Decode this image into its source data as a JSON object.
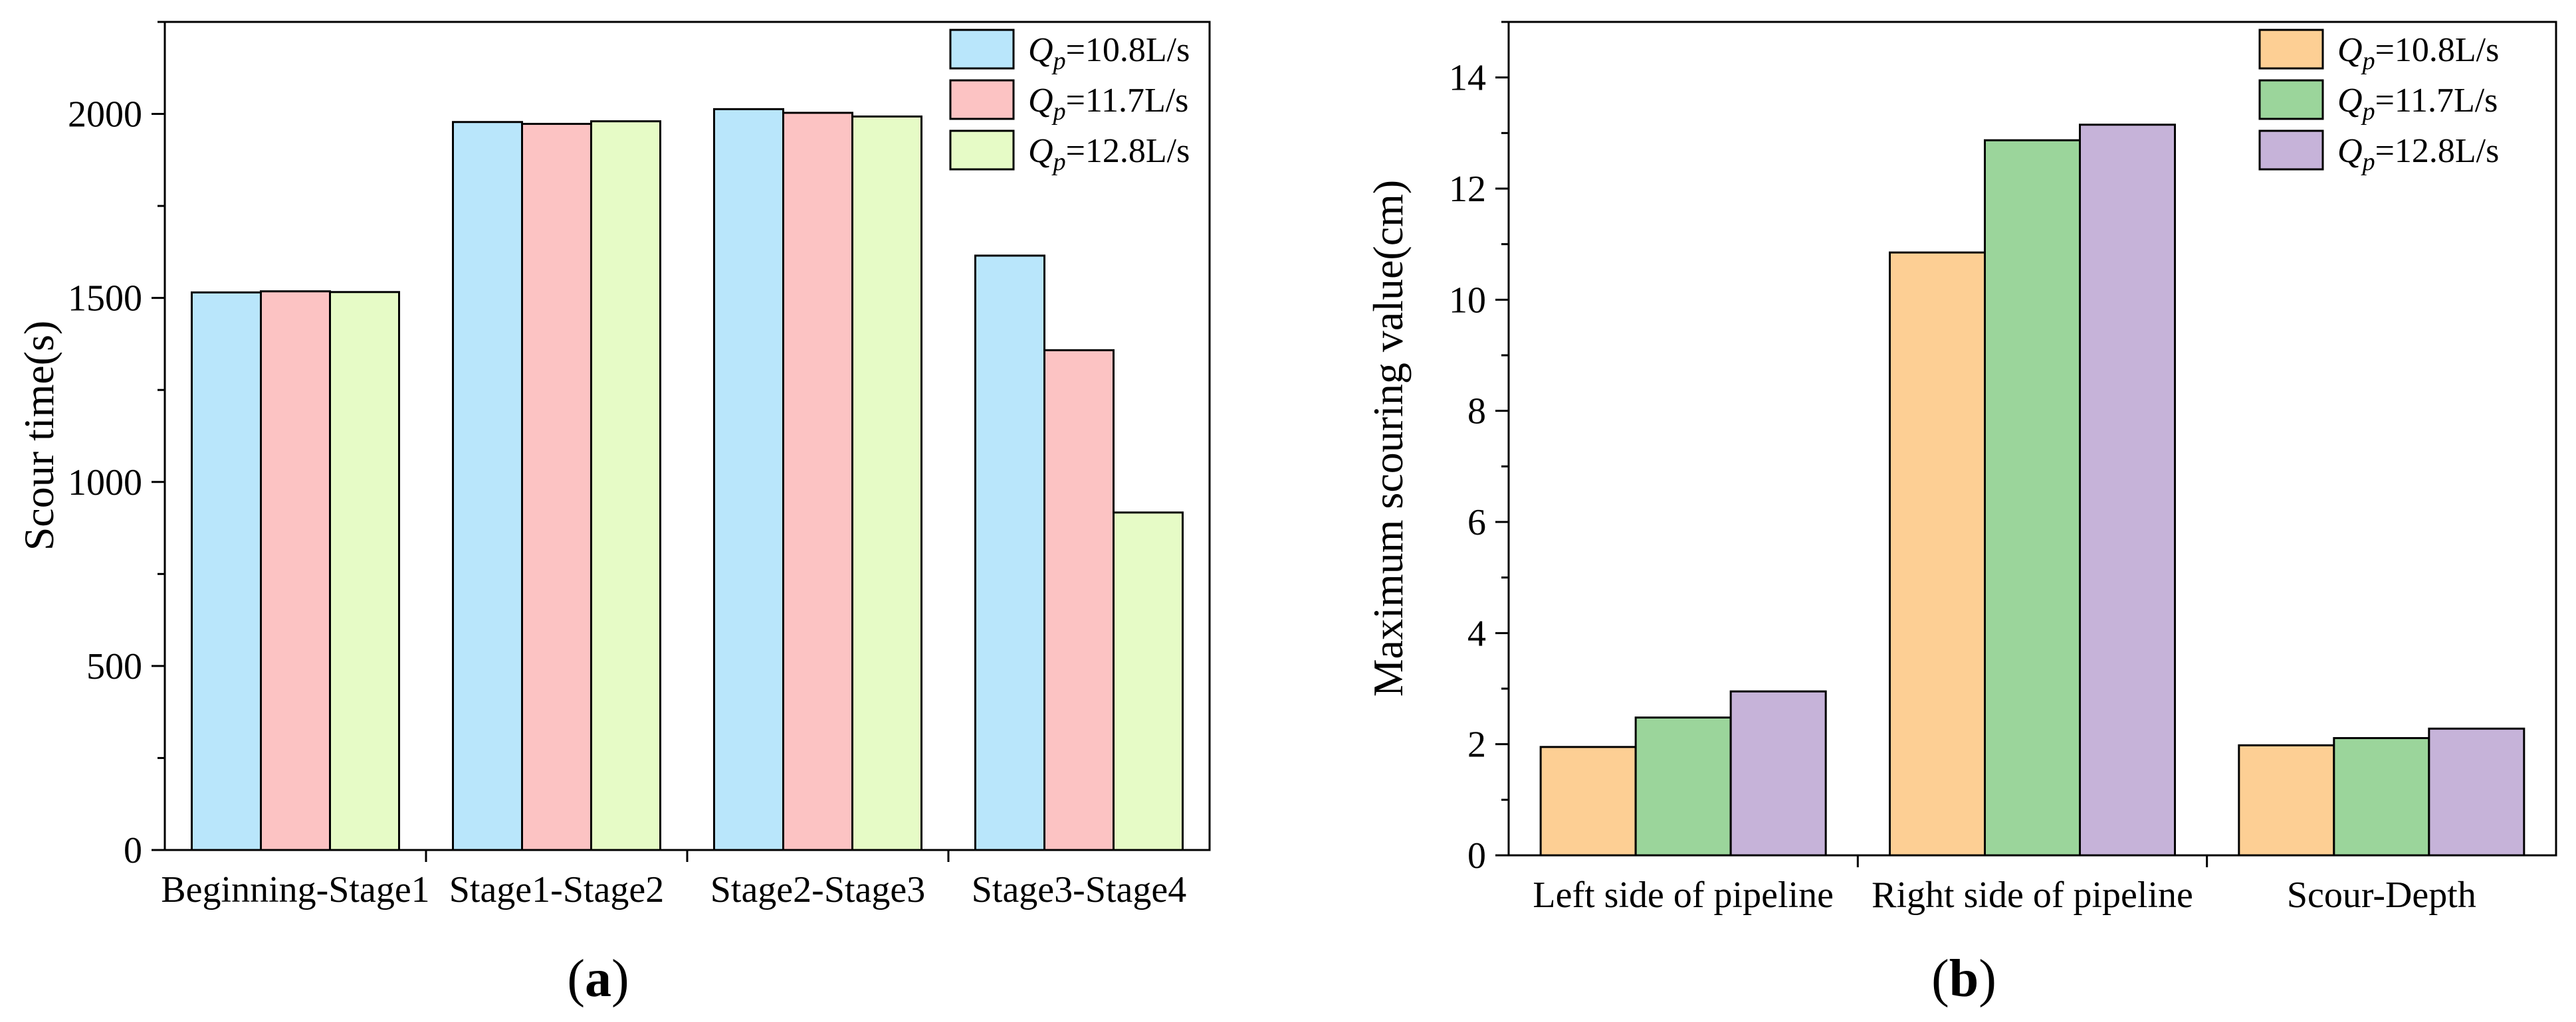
{
  "chart_data": [
    {
      "type": "bar",
      "panel_label": "(a)",
      "title": "",
      "xlabel": "",
      "ylabel": "Scour time(s)",
      "ylim": [
        0,
        2250
      ],
      "yticks": [
        0,
        500,
        1000,
        1500,
        2000
      ],
      "y_minor_step": 250,
      "categories": [
        "Beginning-Stage1",
        "Stage1-Stage2",
        "Stage2-Stage3",
        "Stage3-Stage4"
      ],
      "series": [
        {
          "name": "=10.8L/s",
          "values": [
            1515,
            1978,
            2013,
            1615
          ],
          "color": "#b9e6fb"
        },
        {
          "name": "=11.7L/s",
          "values": [
            1518,
            1973,
            2003,
            1358
          ],
          "color": "#fcc3c3"
        },
        {
          "name": "=12.8L/s",
          "values": [
            1516,
            1980,
            1993,
            917
          ],
          "color": "#e6fbc6"
        }
      ],
      "legend_symbol": "Q",
      "legend_subscript": "p",
      "legend_position": "top-right"
    },
    {
      "type": "bar",
      "panel_label": "(b)",
      "title": "",
      "xlabel": "",
      "ylabel": "Maximum scouring value(cm)",
      "ylim": [
        0,
        15
      ],
      "yticks": [
        0,
        2,
        4,
        6,
        8,
        10,
        12,
        14
      ],
      "y_minor_step": 1,
      "categories": [
        "Left side of pipeline",
        "Right side of pipeline",
        "Scour-Depth"
      ],
      "series": [
        {
          "name": "=10.8L/s",
          "values": [
            1.95,
            10.85,
            1.98
          ],
          "color": "#fdcf94"
        },
        {
          "name": "=11.7L/s",
          "values": [
            2.48,
            12.87,
            2.11
          ],
          "color": "#9bd59b"
        },
        {
          "name": "=12.8L/s",
          "values": [
            2.95,
            13.15,
            2.28
          ],
          "color": "#c6b3d9"
        }
      ],
      "legend_symbol": "Q",
      "legend_subscript": "p",
      "legend_position": "top-right"
    }
  ]
}
